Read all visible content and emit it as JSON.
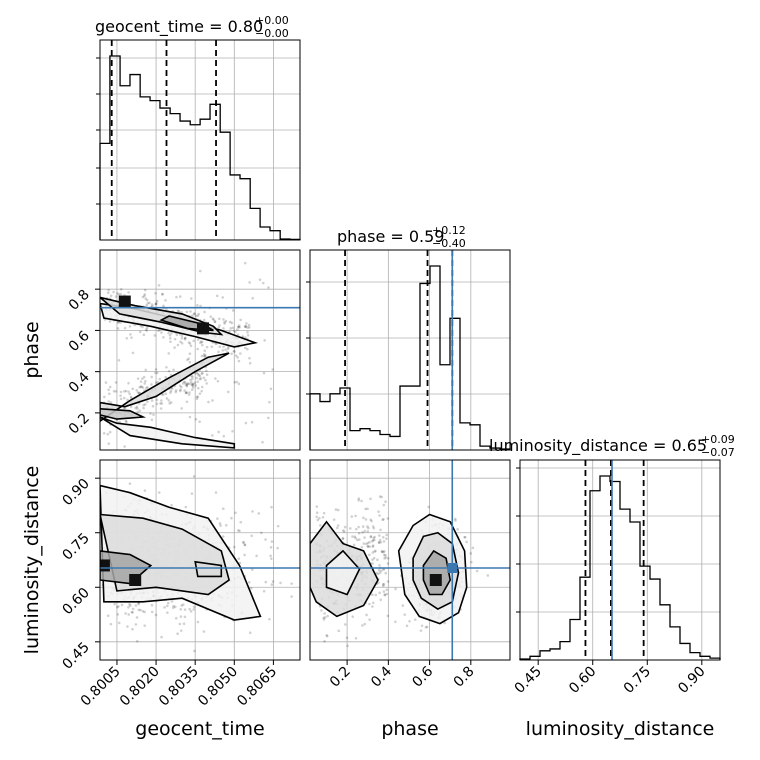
{
  "chart_data": {
    "type": "corner",
    "truth_color": "#3b78b0",
    "parameters": [
      {
        "name": "geocent_time",
        "title": "geocent_time = 0.80",
        "title_plus": "+0.00",
        "title_minus": "−0.00",
        "range": [
          0.79985,
          0.80752
        ],
        "ticks": [
          "0.8005",
          "0.8020",
          "0.8035",
          "0.8050",
          "0.8065"
        ],
        "tick_values": [
          0.8005,
          0.802,
          0.8035,
          0.805,
          0.8065
        ],
        "quantiles": [
          0.8003,
          0.8024,
          0.8043
        ],
        "hist_edges": [
          0.79985,
          0.80023,
          0.80062,
          0.801,
          0.80139,
          0.80177,
          0.80215,
          0.80254,
          0.80292,
          0.80331,
          0.80369,
          0.80407,
          0.80446,
          0.80484,
          0.80522,
          0.80561,
          0.80599,
          0.80637,
          0.80676,
          0.80714,
          0.80752
        ],
        "hist_values": [
          0.52,
          0.99,
          0.83,
          0.89,
          0.77,
          0.75,
          0.71,
          0.68,
          0.64,
          0.62,
          0.65,
          0.73,
          0.58,
          0.35,
          0.33,
          0.17,
          0.07,
          0.05,
          0.005,
          0.003
        ]
      },
      {
        "name": "phase",
        "title": "phase = 0.59",
        "title_plus": "+0.12",
        "title_minus": "−0.40",
        "range": [
          0.02,
          0.99
        ],
        "ticks": [
          "0.2",
          "0.4",
          "0.6",
          "0.8"
        ],
        "tick_values": [
          0.2,
          0.4,
          0.6,
          0.8
        ],
        "quantiles": [
          0.19,
          0.59,
          0.71
        ],
        "truth": 0.71,
        "hist_edges": [
          0.02,
          0.0685,
          0.117,
          0.1655,
          0.214,
          0.2625,
          0.311,
          0.3595,
          0.408,
          0.4565,
          0.505,
          0.5535,
          0.602,
          0.6505,
          0.699,
          0.7475,
          0.796,
          0.8445,
          0.893,
          0.9415,
          0.99
        ],
        "hist_values": [
          0.29,
          0.25,
          0.29,
          0.32,
          0.1,
          0.11,
          0.1,
          0.08,
          0.07,
          0.33,
          0.33,
          0.86,
          0.95,
          0.44,
          0.68,
          0.14,
          0.13,
          0.02,
          0.01,
          0.005
        ]
      },
      {
        "name": "luminosity_distance",
        "title": "luminosity_distance = 0.65",
        "title_plus": "+0.09",
        "title_minus": "−0.07",
        "range": [
          0.4,
          0.95
        ],
        "ticks": [
          "0.45",
          "0.60",
          "0.75",
          "0.90"
        ],
        "tick_values": [
          0.45,
          0.6,
          0.75,
          0.9
        ],
        "quantiles": [
          0.58,
          0.65,
          0.74
        ],
        "truth": 0.653,
        "hist_edges": [
          0.4,
          0.4275,
          0.455,
          0.4825,
          0.51,
          0.5375,
          0.565,
          0.5925,
          0.62,
          0.6475,
          0.675,
          0.7025,
          0.73,
          0.7575,
          0.785,
          0.8125,
          0.84,
          0.8675,
          0.895,
          0.9225,
          0.95
        ],
        "hist_values": [
          0.005,
          0.02,
          0.05,
          0.06,
          0.1,
          0.22,
          0.45,
          0.92,
          1.0,
          0.97,
          0.82,
          0.75,
          0.51,
          0.44,
          0.3,
          0.18,
          0.09,
          0.04,
          0.02,
          0.01
        ]
      }
    ],
    "axis_labels": {
      "x": [
        "geocent_time",
        "phase",
        "luminosity_distance"
      ],
      "y": [
        "phase",
        "luminosity_distance"
      ]
    },
    "truth_point": {
      "phase": 0.71,
      "luminosity_distance": 0.653
    },
    "grid": true
  }
}
